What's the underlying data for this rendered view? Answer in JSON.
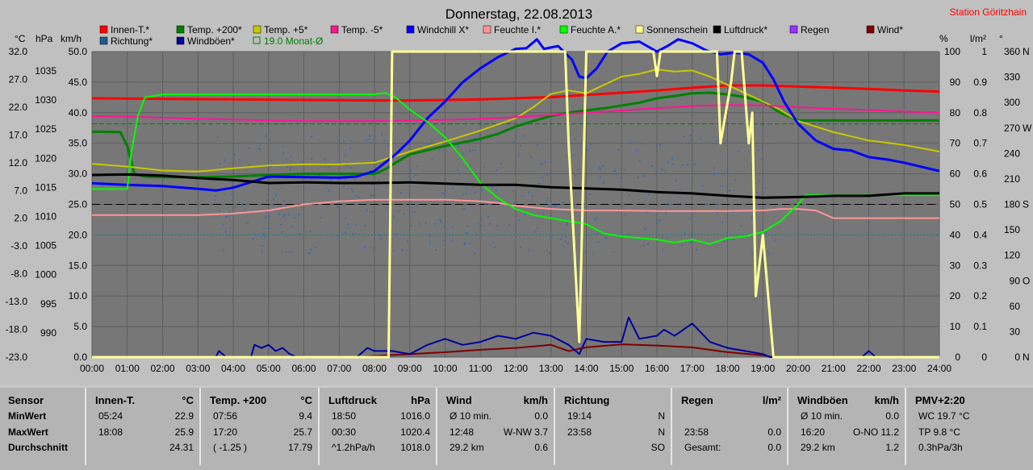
{
  "chart_data": {
    "type": "line",
    "title": "Donnerstag, 22.08.2013",
    "station": "Station Göritzhain",
    "x_ticks": [
      "00:00",
      "01:00",
      "02:00",
      "03:00",
      "04:00",
      "05:00",
      "06:00",
      "07:00",
      "08:00",
      "09:00",
      "10:00",
      "11:00",
      "12:00",
      "13:00",
      "14:00",
      "15:00",
      "16:00",
      "17:00",
      "18:00",
      "19:00",
      "20:00",
      "21:00",
      "22:00",
      "23:00",
      "24:00"
    ],
    "axis_headers": {
      "celsius": "°C",
      "hpa": "hPa",
      "kmh": "km/h",
      "percent": "%",
      "lm2": "l/m²",
      "deg": "°"
    },
    "axis_celsius": [
      "32.0",
      "27.0",
      "22.0",
      "17.0",
      "12.0",
      "7.0",
      "2.0",
      "-3.0",
      "-8.0",
      "-13.0",
      "-18.0",
      "-23.0"
    ],
    "axis_hpa": [
      "1035",
      "1030",
      "1025",
      "1020",
      "1015",
      "1010",
      "1005",
      "1000",
      "995",
      "990"
    ],
    "axis_kmh": [
      "50.0",
      "45.0",
      "40.0",
      "35.0",
      "30.0",
      "25.0",
      "20.0",
      "15.0",
      "10.0",
      "5.0",
      "0.0"
    ],
    "axis_percent": [
      "100",
      "90",
      "80",
      "70",
      "60",
      "50",
      "40",
      "30",
      "20",
      "10",
      "0"
    ],
    "axis_lm2": [
      "1",
      "0.9",
      "0.8",
      "0.7",
      "0.6",
      "0.5",
      "0.4",
      "0.3",
      "0.2",
      "0.1",
      "0"
    ],
    "axis_deg": [
      {
        "v": "360",
        "l": "N"
      },
      {
        "v": "330",
        "l": ""
      },
      {
        "v": "300",
        "l": ""
      },
      {
        "v": "270",
        "l": "W"
      },
      {
        "v": "240",
        "l": ""
      },
      {
        "v": "210",
        "l": ""
      },
      {
        "v": "180",
        "l": "S"
      },
      {
        "v": "150",
        "l": ""
      },
      {
        "v": "120",
        "l": ""
      },
      {
        "v": "90",
        "l": "O"
      },
      {
        "v": "60",
        "l": ""
      },
      {
        "v": "30",
        "l": ""
      },
      {
        "v": "0",
        "l": "N"
      }
    ],
    "legend": [
      {
        "name": "Innen-T.*",
        "color": "#ff0000"
      },
      {
        "name": "Temp. +200*",
        "color": "#008000"
      },
      {
        "name": "Temp. +5*",
        "color": "#c8c800"
      },
      {
        "name": "Temp. -5*",
        "color": "#ff1493"
      },
      {
        "name": "Windchill X*",
        "color": "#0000ff"
      },
      {
        "name": "Feuchte I.*",
        "color": "#ff9696"
      },
      {
        "name": "Feuchte A.*",
        "color": "#00ff00"
      },
      {
        "name": "Sonnenschein",
        "color": "#ffff96"
      },
      {
        "name": "Luftdruck*",
        "color": "#000000"
      },
      {
        "name": "Regen",
        "color": "#9b30ff"
      },
      {
        "name": "Wind*",
        "color": "#800000"
      },
      {
        "name": "Richtung*",
        "color": "#1e5a96"
      },
      {
        "name": "Windböen*",
        "color": "#0000a0"
      },
      {
        "name": "19.0 Monat-Ø",
        "color": "#008000",
        "outline": true
      }
    ],
    "ref_lines": [
      {
        "celsius": 19.0,
        "color": "#008000"
      }
    ],
    "series": [
      {
        "name": "Innen-T.*",
        "color": "#ff0000",
        "width": 3,
        "y_axis": "celsius",
        "x": [
          0,
          2,
          4,
          6,
          8,
          9,
          10,
          11,
          12,
          13,
          14,
          15,
          16,
          17,
          18,
          19,
          20,
          21,
          22,
          23,
          24
        ],
        "y": [
          23.6,
          23.5,
          23.4,
          23.3,
          23.2,
          23.2,
          23.3,
          23.4,
          23.6,
          23.8,
          24.2,
          24.6,
          25.0,
          25.5,
          25.9,
          25.9,
          25.7,
          25.5,
          25.3,
          25.0,
          24.8
        ]
      },
      {
        "name": "Temp. +200*",
        "color": "#008000",
        "width": 3,
        "y_axis": "celsius",
        "x": [
          0,
          0.8,
          1.0,
          1.2,
          1.5,
          2,
          3,
          4,
          5,
          6,
          7,
          8,
          8.3,
          8.6,
          9,
          10,
          11,
          11.5,
          12,
          12.5,
          13,
          13.5,
          14,
          14.5,
          15,
          15.5,
          16,
          16.5,
          17,
          17.5,
          18,
          18.5,
          19,
          19.5,
          20,
          21,
          22,
          23,
          24
        ],
        "y": [
          17.6,
          17.5,
          15,
          10,
          9.5,
          9.4,
          9.4,
          9.5,
          9.8,
          10.0,
          10.0,
          10.0,
          10.8,
          12.0,
          13.5,
          15.0,
          16.3,
          17.2,
          18.5,
          19.5,
          20.4,
          21.0,
          21.4,
          21.8,
          22.3,
          22.8,
          23.6,
          24.0,
          24.5,
          24.6,
          24.3,
          23.8,
          23.0,
          21.0,
          19.6,
          19.6,
          19.6,
          19.6,
          19.6
        ]
      },
      {
        "name": "Temp. +5*",
        "color": "#c8c800",
        "width": 2,
        "y_axis": "celsius",
        "x": [
          0,
          1,
          2,
          3,
          4,
          5,
          6,
          7,
          8,
          9,
          10,
          11,
          12,
          12.5,
          13,
          13.5,
          14,
          14.5,
          15,
          15.5,
          16,
          16.5,
          17,
          17.5,
          18,
          18.5,
          19,
          19.5,
          20,
          21,
          22,
          23,
          24
        ],
        "y": [
          11.8,
          11.3,
          10.6,
          10.4,
          11.0,
          11.5,
          11.7,
          11.7,
          12.0,
          14.0,
          15.8,
          17.8,
          20.0,
          22.0,
          24.4,
          25.0,
          24.5,
          26.0,
          27.5,
          28.0,
          28.8,
          28.4,
          28.6,
          27.5,
          26.0,
          24.5,
          23.0,
          21.5,
          19.5,
          17.5,
          16.0,
          15.2,
          14.0
        ]
      },
      {
        "name": "Temp. -5*",
        "color": "#ff1493",
        "width": 2,
        "y_axis": "celsius",
        "x": [
          0,
          1,
          2,
          3,
          4,
          5,
          6,
          7,
          8,
          9,
          10,
          11,
          12,
          13,
          14,
          15,
          16,
          17,
          18,
          19,
          20,
          21,
          22,
          23,
          24
        ],
        "y": [
          20.4,
          20.3,
          20.1,
          19.9,
          19.8,
          19.6,
          19.5,
          19.5,
          19.5,
          19.6,
          19.7,
          19.9,
          20.2,
          20.6,
          21.0,
          21.4,
          21.8,
          22.2,
          22.4,
          22.3,
          22.0,
          21.7,
          21.5,
          21.2,
          21.0
        ]
      },
      {
        "name": "Windchill X*",
        "color": "#0000ff",
        "width": 3,
        "y_axis": "celsius",
        "x": [
          0,
          1,
          2,
          3,
          3.5,
          4,
          4.5,
          5,
          6,
          7,
          7.5,
          8,
          8.3,
          8.6,
          9,
          9.5,
          10,
          10.5,
          11,
          11.5,
          12,
          12.3,
          12.6,
          12.8,
          13.2,
          13.6,
          13.8,
          14.0,
          14.3,
          14.6,
          15,
          15.5,
          16,
          16.3,
          16.6,
          17,
          17.4,
          17.8,
          18.2,
          18.6,
          19.0,
          19.3,
          19.6,
          20,
          20.5,
          21,
          21.5,
          22,
          22.5,
          23,
          24
        ],
        "y": [
          8.3,
          8.0,
          7.8,
          7.3,
          7.0,
          7.5,
          8.5,
          9.5,
          9.4,
          9.3,
          9.5,
          10.5,
          12.0,
          13.5,
          16.0,
          20.0,
          23.0,
          26.5,
          29.0,
          31.0,
          32.5,
          32.6,
          34.2,
          32.5,
          33.0,
          30.5,
          27.5,
          27.2,
          29.0,
          32.0,
          33.5,
          33.8,
          32.0,
          33.0,
          34.2,
          33.5,
          32.2,
          31.5,
          31.8,
          31.5,
          30.0,
          27.0,
          23.0,
          19.0,
          16.0,
          14.5,
          14.2,
          13.0,
          12.6,
          12.0,
          10.5
        ]
      },
      {
        "name": "Feuchte I.*",
        "color": "#ff9696",
        "width": 2,
        "y_axis": "percent",
        "x": [
          0,
          2,
          3,
          4,
          5,
          5.5,
          6,
          7,
          8,
          9,
          10,
          11,
          11.5,
          12,
          13,
          14,
          15,
          16,
          17,
          18,
          19,
          19.5,
          20,
          20.5,
          21,
          22,
          23,
          24
        ],
        "y": [
          46.5,
          46.5,
          46.5,
          47,
          48,
          49,
          50,
          51,
          51.5,
          51.5,
          51.5,
          51.0,
          50.5,
          49.5,
          48.5,
          48.0,
          48.0,
          47.8,
          47.8,
          47.8,
          48.0,
          48.5,
          48.5,
          48.0,
          45.5,
          45.5,
          45.5,
          45.5
        ]
      },
      {
        "name": "Feuchte A.*",
        "color": "#00ff00",
        "width": 2,
        "y_axis": "percent",
        "x": [
          0,
          1,
          1.1,
          1.3,
          1.5,
          2,
          4,
          6,
          8,
          8.3,
          8.6,
          9,
          9.5,
          10,
          10.5,
          11,
          11.5,
          12,
          12.5,
          13,
          14,
          14.5,
          15,
          15.5,
          16,
          16.5,
          17,
          17.5,
          18,
          18.5,
          19,
          19.5,
          20,
          20.2,
          21,
          22,
          23,
          24
        ],
        "y": [
          55,
          55,
          66,
          79,
          85,
          86,
          86,
          86,
          86,
          86.5,
          85,
          81,
          77,
          72,
          65,
          57,
          52,
          48.5,
          46.5,
          45.5,
          43.5,
          40.5,
          39.5,
          39.0,
          38.5,
          37.5,
          38.5,
          37.0,
          39.0,
          39.5,
          41.0,
          44.5,
          50,
          53,
          53,
          53,
          53,
          53
        ]
      },
      {
        "name": "Luftdruck*",
        "color": "#000000",
        "width": 3,
        "y_axis": "hpa",
        "x": [
          0,
          1,
          2,
          3,
          4,
          5,
          6,
          7,
          8,
          9,
          10,
          11,
          12,
          13,
          14,
          15,
          16,
          17,
          18,
          19,
          20,
          21,
          22,
          23,
          24
        ],
        "y": [
          1019.8,
          1019.9,
          1019.7,
          1019.3,
          1019.0,
          1018.5,
          1018.6,
          1018.5,
          1018.5,
          1018.6,
          1018.4,
          1018.2,
          1018.2,
          1017.8,
          1017.6,
          1017.4,
          1017.0,
          1016.8,
          1016.4,
          1016.1,
          1016.2,
          1016.4,
          1016.4,
          1016.8,
          1016.8
        ]
      },
      {
        "name": "Wind*",
        "color": "#800000",
        "width": 2,
        "y_axis": "kmh",
        "x": [
          0,
          7.5,
          8,
          9,
          10,
          11,
          12,
          13,
          13.5,
          14,
          15,
          16,
          17,
          17.5,
          18,
          19,
          19.3,
          24
        ],
        "y": [
          0,
          0,
          0.2,
          0.5,
          0.8,
          1.2,
          1.5,
          2.0,
          1.0,
          1.6,
          2.1,
          1.9,
          1.6,
          1.2,
          0.8,
          0.3,
          0,
          0
        ]
      },
      {
        "name": "Windböen*",
        "color": "#0000a0",
        "width": 2,
        "y_axis": "kmh",
        "x": [
          0,
          3.5,
          3.6,
          3.8,
          4,
          4.5,
          4.6,
          4.8,
          5.0,
          5.2,
          5.4,
          5.6,
          5.8,
          7.5,
          7.8,
          8,
          8.5,
          9,
          9.5,
          10,
          10.5,
          11,
          11.5,
          12,
          12.5,
          13,
          13.5,
          13.8,
          14,
          14.5,
          15,
          15.2,
          15.5,
          16,
          16.2,
          16.5,
          17,
          17.5,
          18,
          18.5,
          19,
          19.2,
          21.8,
          22,
          22.2,
          24
        ],
        "y": [
          0,
          0,
          1,
          0,
          0,
          0,
          2,
          1.5,
          2,
          1,
          1.5,
          0.5,
          0,
          0,
          1.5,
          1,
          1,
          0.5,
          2,
          3,
          2,
          2.5,
          3.5,
          3.0,
          4,
          3.5,
          2,
          0.5,
          3,
          2.5,
          2.5,
          6.5,
          3.0,
          3.5,
          4.5,
          3.5,
          5.5,
          2.5,
          1.5,
          1.0,
          0.5,
          0,
          0,
          1.0,
          0,
          0
        ]
      },
      {
        "name": "Sonnenschein",
        "color": "#ffff96",
        "width": 3,
        "y_axis": "percent",
        "x": [
          0,
          8.4,
          8.5,
          12.3,
          12.5,
          13.4,
          13.5,
          13.8,
          14.0,
          15.9,
          16.0,
          16.1,
          16.3,
          17.7,
          17.8,
          18.1,
          18.2,
          18.4,
          18.6,
          18.7,
          18.8,
          19.0,
          19.3,
          24
        ],
        "y": [
          0,
          0,
          100,
          100,
          100,
          100,
          70,
          5,
          100,
          100,
          92,
          100,
          100,
          100,
          70,
          90,
          100,
          100,
          70,
          80,
          20,
          40,
          0,
          0
        ]
      }
    ]
  },
  "table": {
    "cols": [
      {
        "name": "Sensor",
        "unit": "",
        "rows": [
          [
            "MinWert",
            "",
            ""
          ],
          [
            "MaxWert",
            "",
            ""
          ],
          [
            "Durchschnitt",
            "",
            ""
          ]
        ]
      },
      {
        "name": "Innen-T.",
        "unit": "°C",
        "rows": [
          [
            "05:24",
            "",
            "22.9"
          ],
          [
            "18:08",
            "",
            "25.9"
          ],
          [
            "",
            "",
            "24.31"
          ]
        ]
      },
      {
        "name": "Temp. +200",
        "unit": "°C",
        "rows": [
          [
            "07:56",
            "",
            "9.4"
          ],
          [
            "17:20",
            "",
            "25.7"
          ],
          [
            "( -1.25 )",
            "",
            "17.79"
          ]
        ]
      },
      {
        "name": "Luftdruck",
        "unit": "hPa",
        "rows": [
          [
            "18:50",
            "",
            "1016.0"
          ],
          [
            "00:30",
            "",
            "1020.4"
          ],
          [
            "^1.2hPa/h",
            "",
            "1018.0"
          ]
        ]
      },
      {
        "name": "Wind",
        "unit": "km/h",
        "rows": [
          [
            "Ø 10 min.",
            "",
            "0.0"
          ],
          [
            "12:48",
            "W-NW 3.7",
            ""
          ],
          [
            "29.2 km",
            "",
            "0.6"
          ]
        ]
      },
      {
        "name": "Richtung",
        "unit": "",
        "rows": [
          [
            "19:14",
            "",
            "N"
          ],
          [
            "23:58",
            "",
            "N"
          ],
          [
            "",
            "",
            "SO"
          ]
        ]
      },
      {
        "name": "Regen",
        "unit": "l/m²",
        "rows": [
          [
            "",
            "",
            ""
          ],
          [
            "23:58",
            "",
            "0.0"
          ],
          [
            "Gesamt:",
            "",
            "0.0"
          ]
        ]
      },
      {
        "name": "Windböen",
        "unit": "km/h",
        "rows": [
          [
            "Ø 10 min.",
            "",
            "0.0"
          ],
          [
            "16:20",
            "O-NO 11.2",
            ""
          ],
          [
            "29.2 km",
            "",
            "1.2"
          ]
        ]
      },
      {
        "name": "PMV+2:20",
        "unit": "",
        "rows": [
          [
            "WC 19.7 °C",
            "",
            ""
          ],
          [
            "TP 9.8 °C",
            "",
            ""
          ],
          [
            "0.3hPa/3h",
            "",
            ""
          ]
        ]
      }
    ]
  }
}
